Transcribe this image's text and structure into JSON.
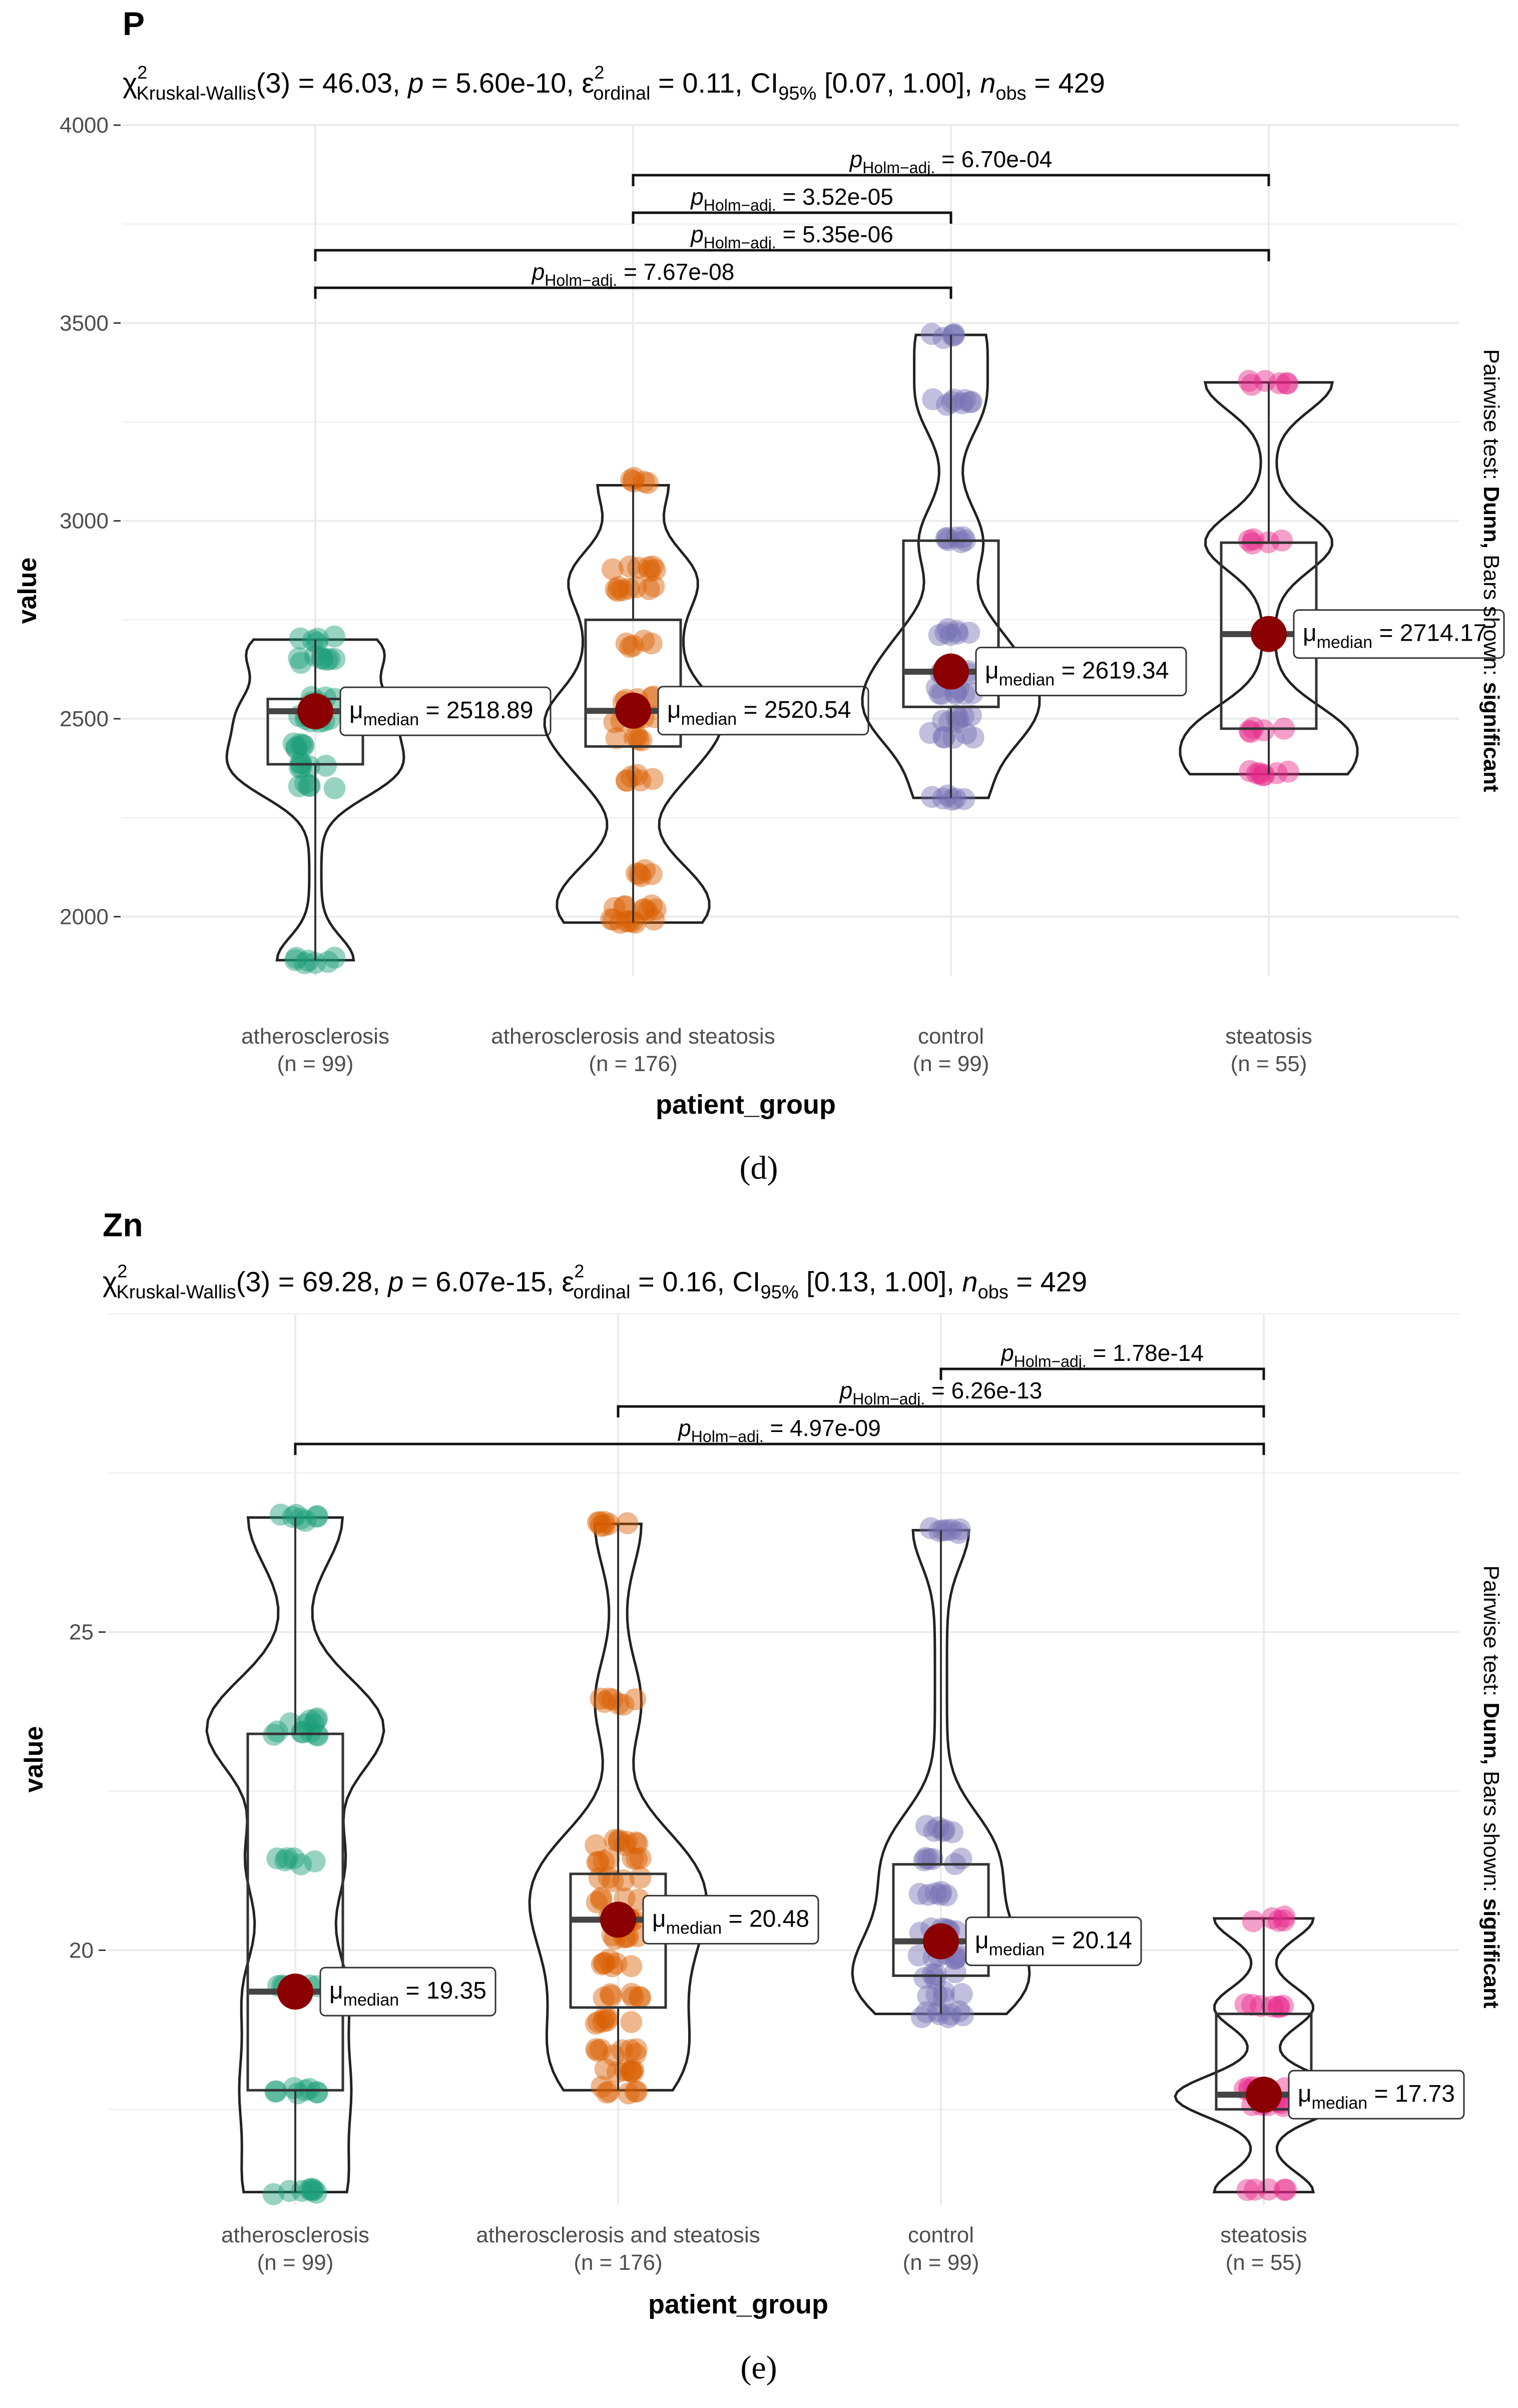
{
  "chart_data": [
    {
      "type": "violin-box",
      "title": "P",
      "subtitle": {
        "stat_label": "Kruskal-Wallis",
        "df": "(3)",
        "stat_value": " = 46.03, ",
        "p_text": " = 5.60e-10, ",
        "eps_sub": "ordinal",
        "eps_value": " = 0.11, CI",
        "ci_sub": "95%",
        "ci_value": " [0.07, 1.00], ",
        "nobs_sub": "obs",
        "nobs_value": " = 429"
      },
      "xlabel": "patient_group",
      "ylabel": "value",
      "ylim": [
        1850,
        4000
      ],
      "yticks": [
        "2000",
        "2500",
        "3000",
        "3500",
        "4000"
      ],
      "yticks_values": [
        2000,
        2500,
        3000,
        3500,
        4000
      ],
      "grid": true,
      "side_caption": {
        "prefix": "Pairwise test: ",
        "test": "Dunn,",
        "middle": " Bars shown: ",
        "shown": "significant"
      },
      "panel_label": "(d)",
      "groups": [
        {
          "name": "atherosclerosis",
          "n": "(n = 99)",
          "color": "#1B9E77",
          "q1": 2385,
          "median": 2519,
          "q3": 2550,
          "whisker_low": 1890,
          "whisker_high": 2700,
          "mean_label": "= 2518.89",
          "mean_value": 2518.89,
          "point_clusters": [
            2700,
            2650,
            2550,
            2500,
            2430,
            2380,
            2330,
            1890
          ]
        },
        {
          "name": "atherosclerosis and steatosis",
          "n": "(n = 176)",
          "color": "#D95F02",
          "q1": 2430,
          "median": 2520,
          "q3": 2750,
          "whisker_low": 1985,
          "whisker_high": 3090,
          "mean_label": "= 2520.54",
          "mean_value": 2520.54,
          "point_clusters": [
            3100,
            2880,
            2830,
            2690,
            2550,
            2500,
            2450,
            2350,
            2110,
            2020,
            1985
          ]
        },
        {
          "name": "control",
          "n": "(n = 99)",
          "color": "#7570B3",
          "q1": 2530,
          "median": 2619,
          "q3": 2950,
          "whisker_low": 2300,
          "whisker_high": 3470,
          "mean_label": "= 2619.34",
          "mean_value": 2619.34,
          "point_clusters": [
            3470,
            3300,
            2950,
            2720,
            2620,
            2570,
            2500,
            2460,
            2300
          ]
        },
        {
          "name": "steatosis",
          "n": "(n = 55)",
          "color": "#E7298A",
          "q1": 2475,
          "median": 2714,
          "q3": 2945,
          "whisker_low": 2360,
          "whisker_high": 3350,
          "mean_label": "= 2714.17",
          "mean_value": 2714.17,
          "point_clusters": [
            3350,
            2945,
            2475,
            2360
          ]
        }
      ],
      "comparisons": [
        {
          "g1": 1,
          "g2": 3,
          "level": 4,
          "p_sub": "Holm−adj.",
          "p_value": " = 6.70e-04"
        },
        {
          "g1": 1,
          "g2": 2,
          "level": 3,
          "p_sub": "Holm−adj.",
          "p_value": " = 3.52e-05"
        },
        {
          "g1": 0,
          "g2": 3,
          "level": 2,
          "p_sub": "Holm−adj.",
          "p_value": " = 5.35e-06"
        },
        {
          "g1": 0,
          "g2": 2,
          "level": 1,
          "p_sub": "Holm−adj.",
          "p_value": " = 7.67e-08"
        }
      ]
    },
    {
      "type": "violin-box",
      "title": "Zn",
      "subtitle": {
        "stat_label": "Kruskal-Wallis",
        "df": "(3)",
        "stat_value": " = 69.28, ",
        "p_text": " = 6.07e-15, ",
        "eps_sub": "ordinal",
        "eps_value": " = 0.16, CI",
        "ci_sub": "95%",
        "ci_value": " [0.13, 1.00], ",
        "nobs_sub": "obs",
        "nobs_value": " = 429"
      },
      "xlabel": "patient_group",
      "ylabel": "value",
      "ylim": [
        16.0,
        30.0
      ],
      "yticks": [
        "20",
        "25"
      ],
      "yticks_values": [
        20,
        25
      ],
      "grid": true,
      "side_caption": {
        "prefix": "Pairwise test: ",
        "test": "Dunn,",
        "middle": " Bars shown: ",
        "shown": "significant"
      },
      "panel_label": "(e)",
      "groups": [
        {
          "name": "atherosclerosis",
          "n": "(n = 99)",
          "color": "#1B9E77",
          "q1": 17.8,
          "median": 19.35,
          "q3": 23.4,
          "whisker_low": 16.2,
          "whisker_high": 26.8,
          "mean_label": "= 19.35",
          "mean_value": 19.35,
          "point_clusters": [
            26.8,
            23.6,
            23.4,
            21.4,
            19.4,
            17.8,
            16.2
          ]
        },
        {
          "name": "atherosclerosis and steatosis",
          "n": "(n = 176)",
          "color": "#D95F02",
          "q1": 19.1,
          "median": 20.48,
          "q3": 21.2,
          "whisker_low": 17.8,
          "whisker_high": 26.7,
          "mean_label": "= 20.48",
          "mean_value": 20.48,
          "point_clusters": [
            26.7,
            23.9,
            21.7,
            21.4,
            21.1,
            20.8,
            20.5,
            20.2,
            19.8,
            19.3,
            18.9,
            18.4,
            18.1,
            17.8
          ]
        },
        {
          "name": "control",
          "n": "(n = 99)",
          "color": "#7570B3",
          "q1": 19.6,
          "median": 20.14,
          "q3": 21.35,
          "whisker_low": 19.0,
          "whisker_high": 26.6,
          "mean_label": "= 20.14",
          "mean_value": 20.14,
          "point_clusters": [
            26.6,
            21.9,
            21.4,
            20.9,
            20.3,
            19.9,
            19.6,
            19.3,
            19.0
          ]
        },
        {
          "name": "steatosis",
          "n": "(n = 55)",
          "color": "#E7298A",
          "q1": 17.5,
          "median": 17.73,
          "q3": 19.0,
          "whisker_low": 16.2,
          "whisker_high": 20.5,
          "mean_label": "= 17.73",
          "mean_value": 17.73,
          "point_clusters": [
            20.5,
            19.1,
            17.8,
            17.6,
            16.2
          ]
        }
      ],
      "comparisons": [
        {
          "g1": 2,
          "g2": 3,
          "level": 3,
          "p_sub": "Holm−adj.",
          "p_value": " = 1.78e-14"
        },
        {
          "g1": 1,
          "g2": 3,
          "level": 2,
          "p_sub": "Holm−adj.",
          "p_value": " = 6.26e-13"
        },
        {
          "g1": 0,
          "g2": 3,
          "level": 1,
          "p_sub": "Holm−adj.",
          "p_value": " = 4.97e-09"
        }
      ]
    }
  ],
  "common": {
    "median_label": "median",
    "mu_symbol": "μ",
    "chi_symbol": "χ",
    "eps_symbol": "ε",
    "p_symbol": "p",
    "n_symbol": "n",
    "sq": "2"
  }
}
